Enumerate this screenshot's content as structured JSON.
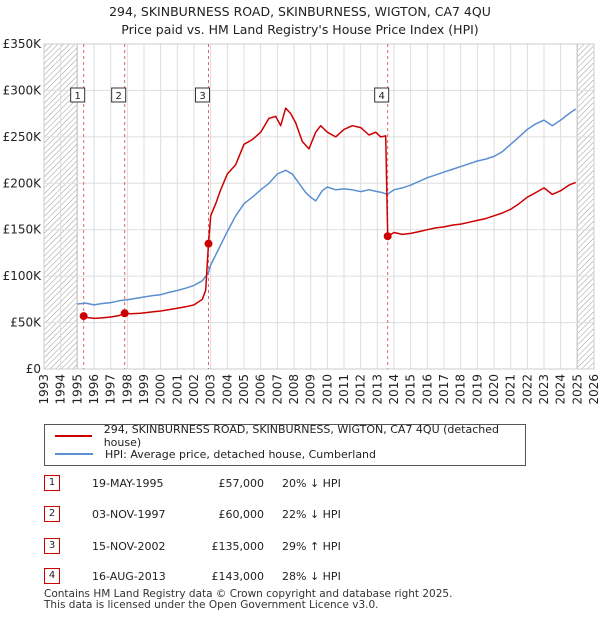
{
  "header": {
    "line1": "294, SKINBURNESS ROAD, SKINBURNESS, WIGTON, CA7 4QU",
    "line2": "Price paid vs. HM Land Registry's House Price Index (HPI)"
  },
  "colors": {
    "price_line": "#cc0000",
    "hpi_line": "#5b8fd0",
    "grid": "#dddddd",
    "hatch": "#888888",
    "marker": "#cc0000"
  },
  "chart_data": {
    "type": "line",
    "title": "294, SKINBURNESS ROAD, SKINBURNESS, WIGTON, CA7 4QU — Price paid vs. HM Land Registry's House Price Index (HPI)",
    "xlabel": "",
    "ylabel": "",
    "xlim": [
      1993,
      2026
    ],
    "ylim": [
      0,
      350000
    ],
    "x_ticks": [
      "1993",
      "1994",
      "1995",
      "1996",
      "1997",
      "1998",
      "1999",
      "2000",
      "2001",
      "2002",
      "2003",
      "2004",
      "2005",
      "2006",
      "2007",
      "2008",
      "2009",
      "2010",
      "2011",
      "2012",
      "2013",
      "2014",
      "2015",
      "2016",
      "2017",
      "2018",
      "2019",
      "2020",
      "2021",
      "2022",
      "2023",
      "2024",
      "2025",
      "2026"
    ],
    "y_ticks": [
      {
        "value": 0,
        "label": "£0"
      },
      {
        "value": 50000,
        "label": "£50K"
      },
      {
        "value": 100000,
        "label": "£100K"
      },
      {
        "value": 150000,
        "label": "£150K"
      },
      {
        "value": 200000,
        "label": "£200K"
      },
      {
        "value": 250000,
        "label": "£250K"
      },
      {
        "value": 300000,
        "label": "£300K"
      },
      {
        "value": 350000,
        "label": "£350K"
      }
    ],
    "grid": true,
    "hatched_ranges": [
      [
        1993,
        1995.0
      ],
      [
        2025.0,
        2026
      ]
    ],
    "series": [
      {
        "name": "294, SKINBURNESS ROAD, SKINBURNESS, WIGTON, CA7 4QU (detached house)",
        "color": "#cc0000",
        "x": [
          1995.38,
          1995.6,
          1996.0,
          1996.5,
          1997.0,
          1997.5,
          1997.84,
          1998.2,
          1998.8,
          1999.5,
          2000.0,
          2000.5,
          2001.0,
          2001.5,
          2002.0,
          2002.5,
          2002.7,
          2002.87,
          2003.0,
          2003.3,
          2003.6,
          2004.0,
          2004.5,
          2005.0,
          2005.5,
          2006.0,
          2006.5,
          2006.9,
          2007.2,
          2007.5,
          2007.8,
          2008.1,
          2008.5,
          2008.9,
          2009.3,
          2009.6,
          2010.0,
          2010.5,
          2011.0,
          2011.5,
          2012.0,
          2012.5,
          2012.9,
          2013.2,
          2013.5,
          2013.62,
          2014.0,
          2014.5,
          2015.0,
          2015.5,
          2016.0,
          2016.5,
          2017.0,
          2017.5,
          2018.0,
          2018.5,
          2019.0,
          2019.5,
          2020.0,
          2020.5,
          2021.0,
          2021.5,
          2022.0,
          2022.5,
          2023.0,
          2023.5,
          2024.0,
          2024.5,
          2024.9
        ],
        "y": [
          57000,
          55500,
          54500,
          55000,
          56000,
          57500,
          60000,
          59500,
          60000,
          61500,
          62500,
          64000,
          65500,
          67000,
          69000,
          75000,
          85000,
          135000,
          165000,
          178000,
          193000,
          210000,
          220000,
          242000,
          247000,
          255000,
          270000,
          272000,
          262000,
          281000,
          275000,
          265000,
          245000,
          237000,
          255000,
          262000,
          255000,
          250000,
          258000,
          262000,
          260000,
          252000,
          255000,
          250000,
          251000,
          143000,
          147000,
          145000,
          146000,
          148000,
          150000,
          152000,
          153000,
          155000,
          156000,
          158000,
          160000,
          162000,
          165000,
          168000,
          172000,
          178000,
          185000,
          190000,
          195000,
          188000,
          192000,
          198000,
          201000
        ]
      },
      {
        "name": "HPI: Average price, detached house, Cumberland",
        "color": "#5b8fd0",
        "x": [
          1995.0,
          1995.5,
          1996.0,
          1996.5,
          1997.0,
          1997.5,
          1998.0,
          1998.5,
          1999.0,
          1999.5,
          2000.0,
          2000.5,
          2001.0,
          2001.5,
          2002.0,
          2002.5,
          2002.87,
          2003.0,
          2003.5,
          2004.0,
          2004.5,
          2005.0,
          2005.5,
          2006.0,
          2006.5,
          2007.0,
          2007.5,
          2007.9,
          2008.3,
          2008.7,
          2009.0,
          2009.3,
          2009.7,
          2010.0,
          2010.5,
          2011.0,
          2011.5,
          2012.0,
          2012.5,
          2013.0,
          2013.3,
          2013.6,
          2014.0,
          2014.5,
          2015.0,
          2015.5,
          2016.0,
          2016.5,
          2017.0,
          2017.5,
          2018.0,
          2018.5,
          2019.0,
          2019.5,
          2020.0,
          2020.5,
          2021.0,
          2021.5,
          2022.0,
          2022.5,
          2023.0,
          2023.5,
          2024.0,
          2024.5,
          2024.9
        ],
        "y": [
          70000,
          71000,
          69000,
          70500,
          71500,
          73500,
          74500,
          76000,
          77500,
          79000,
          80000,
          82500,
          84500,
          87000,
          90000,
          95000,
          104000,
          112000,
          130000,
          148000,
          165000,
          178000,
          185000,
          193000,
          200000,
          210000,
          214000,
          210000,
          200000,
          190000,
          185000,
          181000,
          192000,
          196000,
          193000,
          194000,
          193000,
          191000,
          193000,
          191000,
          190000,
          188000,
          193000,
          195000,
          198000,
          202000,
          206000,
          209000,
          212000,
          215000,
          218000,
          221000,
          224000,
          226000,
          229000,
          234000,
          242000,
          250000,
          258000,
          264000,
          268000,
          262000,
          268000,
          275000,
          280000
        ]
      }
    ],
    "transactions": [
      {
        "label": "1",
        "x": 1995.38,
        "price": 57000
      },
      {
        "label": "2",
        "x": 1997.84,
        "price": 60000
      },
      {
        "label": "3",
        "x": 2002.87,
        "price": 135000
      },
      {
        "label": "4",
        "x": 2013.62,
        "price": 143000
      }
    ]
  },
  "legend": {
    "price_label": "294, SKINBURNESS ROAD, SKINBURNESS, WIGTON, CA7 4QU (detached house)",
    "hpi_label": "HPI: Average price, detached house, Cumberland"
  },
  "table": [
    {
      "num": "1",
      "date": "19-MAY-1995",
      "price": "£57,000",
      "hpi": "20% ↓ HPI"
    },
    {
      "num": "2",
      "date": "03-NOV-1997",
      "price": "£60,000",
      "hpi": "22% ↓ HPI"
    },
    {
      "num": "3",
      "date": "15-NOV-2002",
      "price": "£135,000",
      "hpi": "29% ↑ HPI"
    },
    {
      "num": "4",
      "date": "16-AUG-2013",
      "price": "£143,000",
      "hpi": "28% ↓ HPI"
    }
  ],
  "footer": {
    "line1": "Contains HM Land Registry data © Crown copyright and database right 2025.",
    "line2": "This data is licensed under the Open Government Licence v3.0."
  }
}
